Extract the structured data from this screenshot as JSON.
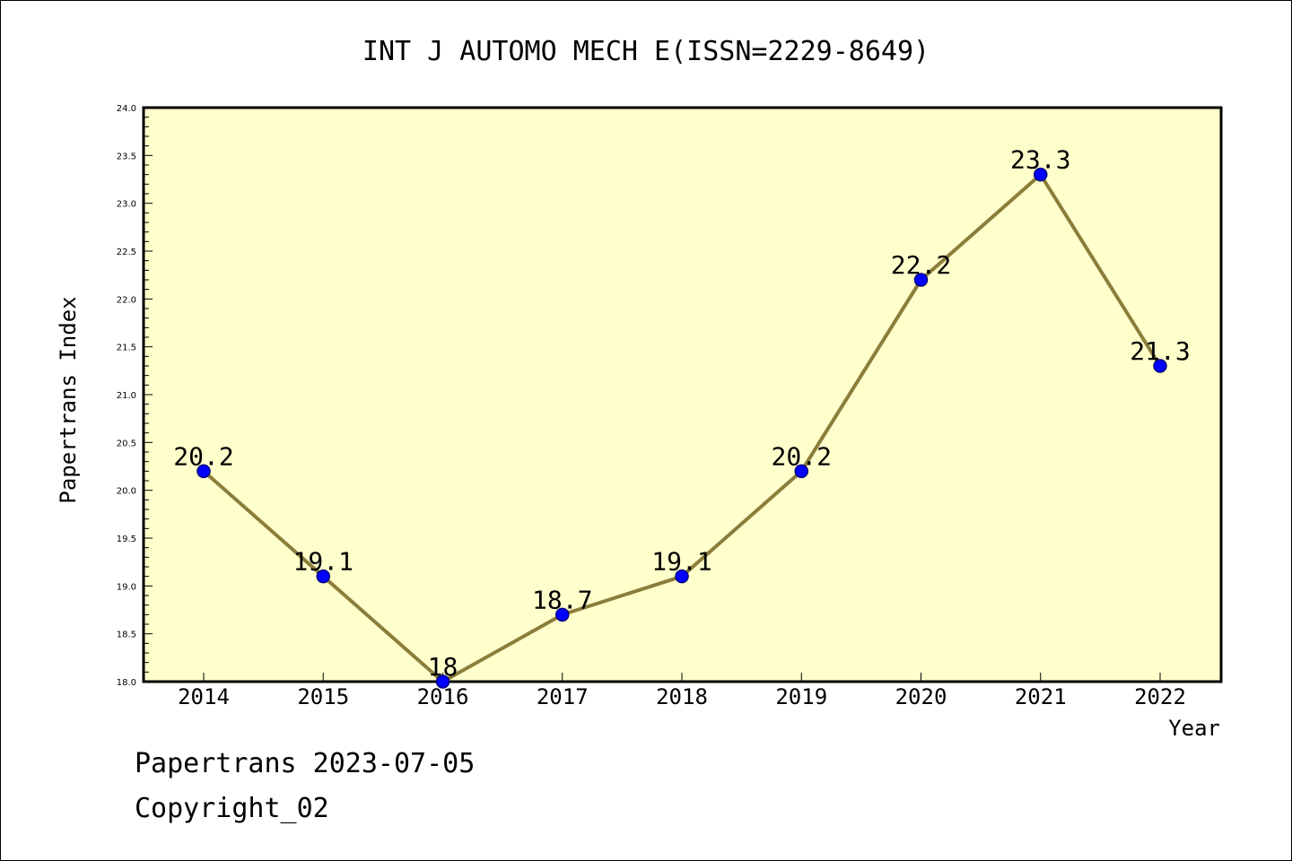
{
  "footer": {
    "line1": "Papertrans 2023-07-05",
    "line2": "Copyright_02"
  },
  "chart_data": {
    "type": "line",
    "title": "INT J AUTOMO MECH E(ISSN=2229-8649)",
    "xlabel": "Year",
    "ylabel": "Papertrans Index",
    "x": [
      "2014",
      "2015",
      "2016",
      "2017",
      "2018",
      "2019",
      "2020",
      "2021",
      "2022"
    ],
    "series": [
      {
        "values": [
          20.2,
          19.1,
          18.0,
          18.7,
          19.1,
          20.2,
          22.2,
          23.3,
          21.3
        ],
        "labels": [
          "20.2",
          "19.1",
          "18",
          "18.7",
          "19.1",
          "20.2",
          "22.2",
          "23.3",
          "21.3"
        ]
      }
    ],
    "ylim": [
      18.0,
      24.0
    ],
    "yticks": [
      "18.0",
      "18.5",
      "19.0",
      "19.5",
      "20.0",
      "20.5",
      "21.0",
      "21.5",
      "22.0",
      "22.5",
      "23.0",
      "23.5",
      "24.0"
    ],
    "grid": false,
    "colors": {
      "plot_background": "#FFFFCC",
      "line": "#8B7D3A",
      "marker": "#0000FF",
      "marker_edge": "#000080"
    }
  }
}
